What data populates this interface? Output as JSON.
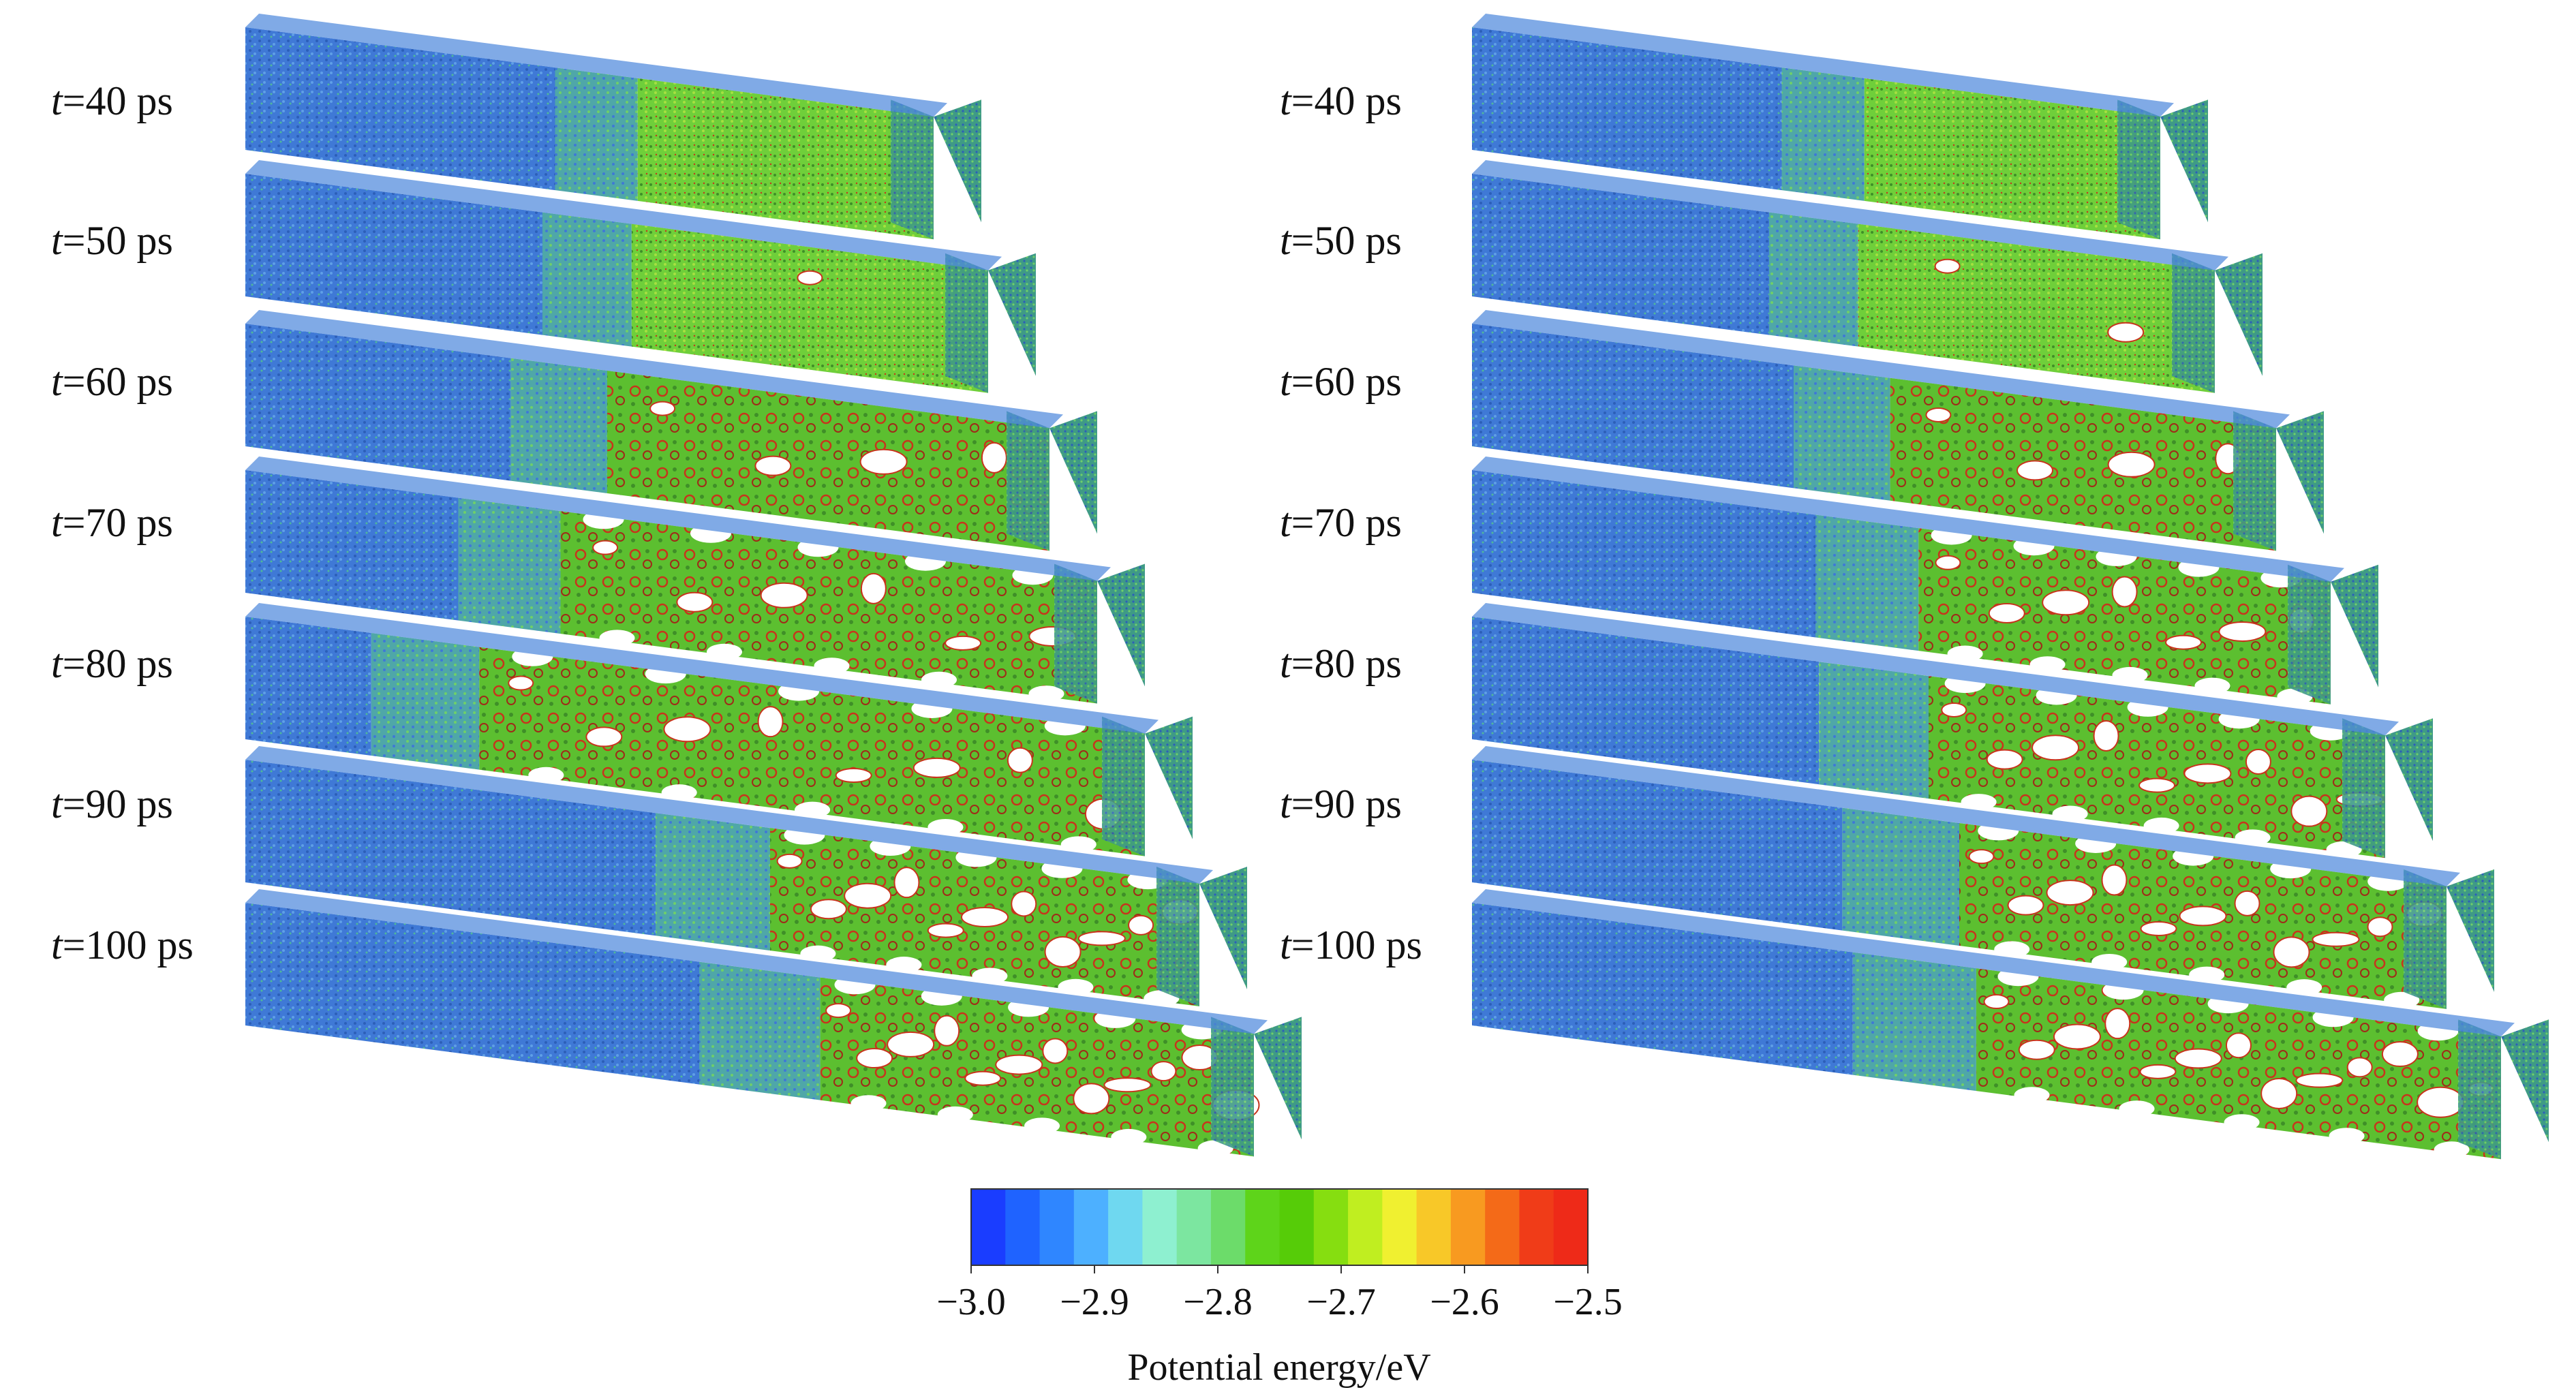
{
  "panels": [
    {
      "id": "left",
      "frames": [
        {
          "var": "t",
          "value": "=40 ps"
        },
        {
          "var": "t",
          "value": "=50 ps"
        },
        {
          "var": "t",
          "value": "=60 ps"
        },
        {
          "var": "t",
          "value": "=70 ps"
        },
        {
          "var": "t",
          "value": "=80 ps"
        },
        {
          "var": "t",
          "value": "=90 ps"
        },
        {
          "var": "t",
          "value": "=100 ps"
        }
      ]
    },
    {
      "id": "right",
      "frames": [
        {
          "var": "t",
          "value": "=40 ps"
        },
        {
          "var": "t",
          "value": "=50 ps"
        },
        {
          "var": "t",
          "value": "=60 ps"
        },
        {
          "var": "t",
          "value": "=70 ps"
        },
        {
          "var": "t",
          "value": "=80 ps"
        },
        {
          "var": "t",
          "value": "=90 ps"
        },
        {
          "var": "t",
          "value": "=100 ps"
        }
      ]
    }
  ],
  "colorbar": {
    "label": "Potential energy/eV",
    "ticks": [
      "−3.0",
      "−2.9",
      "−2.8",
      "−2.7",
      "−2.6",
      "−2.5"
    ],
    "min": -3.0,
    "max": -2.5,
    "colors": [
      "#1a3dff",
      "#1f63ff",
      "#2f86ff",
      "#4db0ff",
      "#6fd8f0",
      "#8ef0d0",
      "#7ce6a0",
      "#6cdc6a",
      "#5ed41a",
      "#56cc08",
      "#86de10",
      "#c0ee20",
      "#f0f030",
      "#f8c828",
      "#f89a20",
      "#f46a18",
      "#f03c18",
      "#ee2a18"
    ]
  },
  "palette": {
    "blue": "#3f79d6",
    "blue_dark": "#2c5fb8",
    "teal": "#4fb89a",
    "green": "#6fcf3a",
    "green_dark": "#3f8f28",
    "red": "#c8341c"
  }
}
